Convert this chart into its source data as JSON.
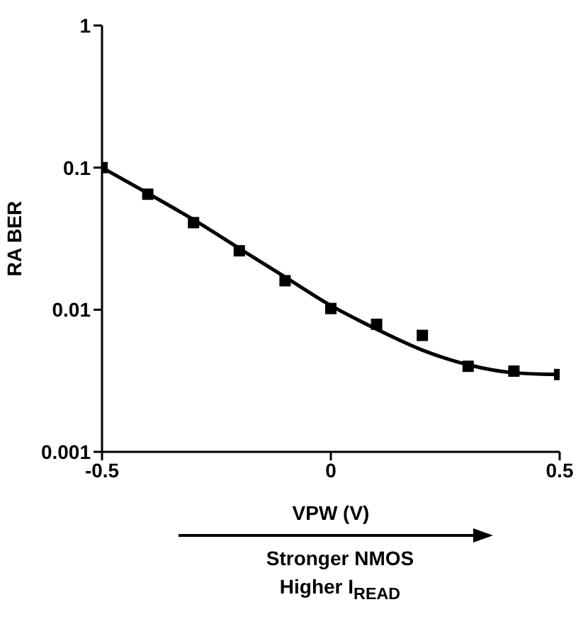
{
  "chart_data": {
    "type": "scatter",
    "xlabel": "VPW (V)",
    "ylabel": "RA BER",
    "log": "y",
    "xlim": [
      -0.5,
      0.5
    ],
    "xticks": [
      -0.5,
      0,
      0.5
    ],
    "ylim": [
      0.001,
      1
    ],
    "yticks": [
      1,
      0.1,
      0.01,
      0.001
    ],
    "marker": "square",
    "x": [
      -0.5,
      -0.4,
      -0.3,
      -0.2,
      -0.1,
      0,
      0.1,
      0.2,
      0.3,
      0.4,
      0.5
    ],
    "series": [
      {
        "color": "#000000",
        "values": [
          0.1,
          0.065,
          0.041,
          0.026,
          0.016,
          0.0102,
          0.0079,
          0.0066,
          0.004,
          0.0037,
          0.0035
        ]
      },
      {
        "type": "line",
        "color": "#000000",
        "marker": "none",
        "line_style": "solid",
        "x": [
          -0.5,
          -0.4,
          -0.3,
          -0.2,
          -0.1,
          0,
          0.1,
          0.2,
          0.3,
          0.4,
          0.5
        ],
        "values": [
          0.1,
          0.066,
          0.043,
          0.027,
          0.017,
          0.0107,
          0.0073,
          0.0052,
          0.0041,
          0.0036,
          0.0035
        ]
      }
    ],
    "annotations": [
      "Stronger NMOS",
      "Higher I$_{READ}$"
    ]
  }
}
